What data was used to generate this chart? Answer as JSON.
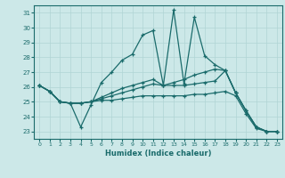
{
  "xlabel": "Humidex (Indice chaleur)",
  "bg_color": "#cce8e8",
  "line_color": "#1a6b6b",
  "grid_color": "#b0d4d4",
  "xlim": [
    -0.5,
    23.5
  ],
  "ylim": [
    22.5,
    31.5
  ],
  "xticks": [
    0,
    1,
    2,
    3,
    4,
    5,
    6,
    7,
    8,
    9,
    10,
    11,
    12,
    13,
    14,
    15,
    16,
    17,
    18,
    19,
    20,
    21,
    22,
    23
  ],
  "yticks": [
    23,
    24,
    25,
    26,
    27,
    28,
    29,
    30,
    31
  ],
  "lines": [
    [
      26.1,
      25.7,
      25.0,
      24.9,
      23.3,
      24.8,
      26.3,
      27.0,
      27.8,
      28.2,
      29.5,
      29.8,
      26.1,
      31.2,
      26.2,
      30.7,
      28.1,
      27.5,
      27.1,
      25.6,
      24.4,
      23.3,
      23.0,
      23.0
    ],
    [
      26.1,
      25.7,
      25.0,
      24.9,
      24.9,
      25.0,
      25.3,
      25.6,
      25.9,
      26.1,
      26.3,
      26.5,
      26.1,
      26.3,
      26.5,
      26.8,
      27.0,
      27.2,
      27.1,
      25.6,
      24.4,
      23.3,
      23.0,
      23.0
    ],
    [
      26.1,
      25.7,
      25.0,
      24.9,
      24.9,
      25.0,
      25.2,
      25.4,
      25.6,
      25.8,
      26.0,
      26.2,
      26.1,
      26.1,
      26.1,
      26.2,
      26.3,
      26.4,
      27.1,
      25.6,
      24.4,
      23.3,
      23.0,
      23.0
    ],
    [
      26.1,
      25.7,
      25.0,
      24.9,
      24.9,
      25.0,
      25.1,
      25.1,
      25.2,
      25.3,
      25.4,
      25.4,
      25.4,
      25.4,
      25.4,
      25.5,
      25.5,
      25.6,
      25.7,
      25.4,
      24.2,
      23.2,
      23.0,
      23.0
    ]
  ]
}
